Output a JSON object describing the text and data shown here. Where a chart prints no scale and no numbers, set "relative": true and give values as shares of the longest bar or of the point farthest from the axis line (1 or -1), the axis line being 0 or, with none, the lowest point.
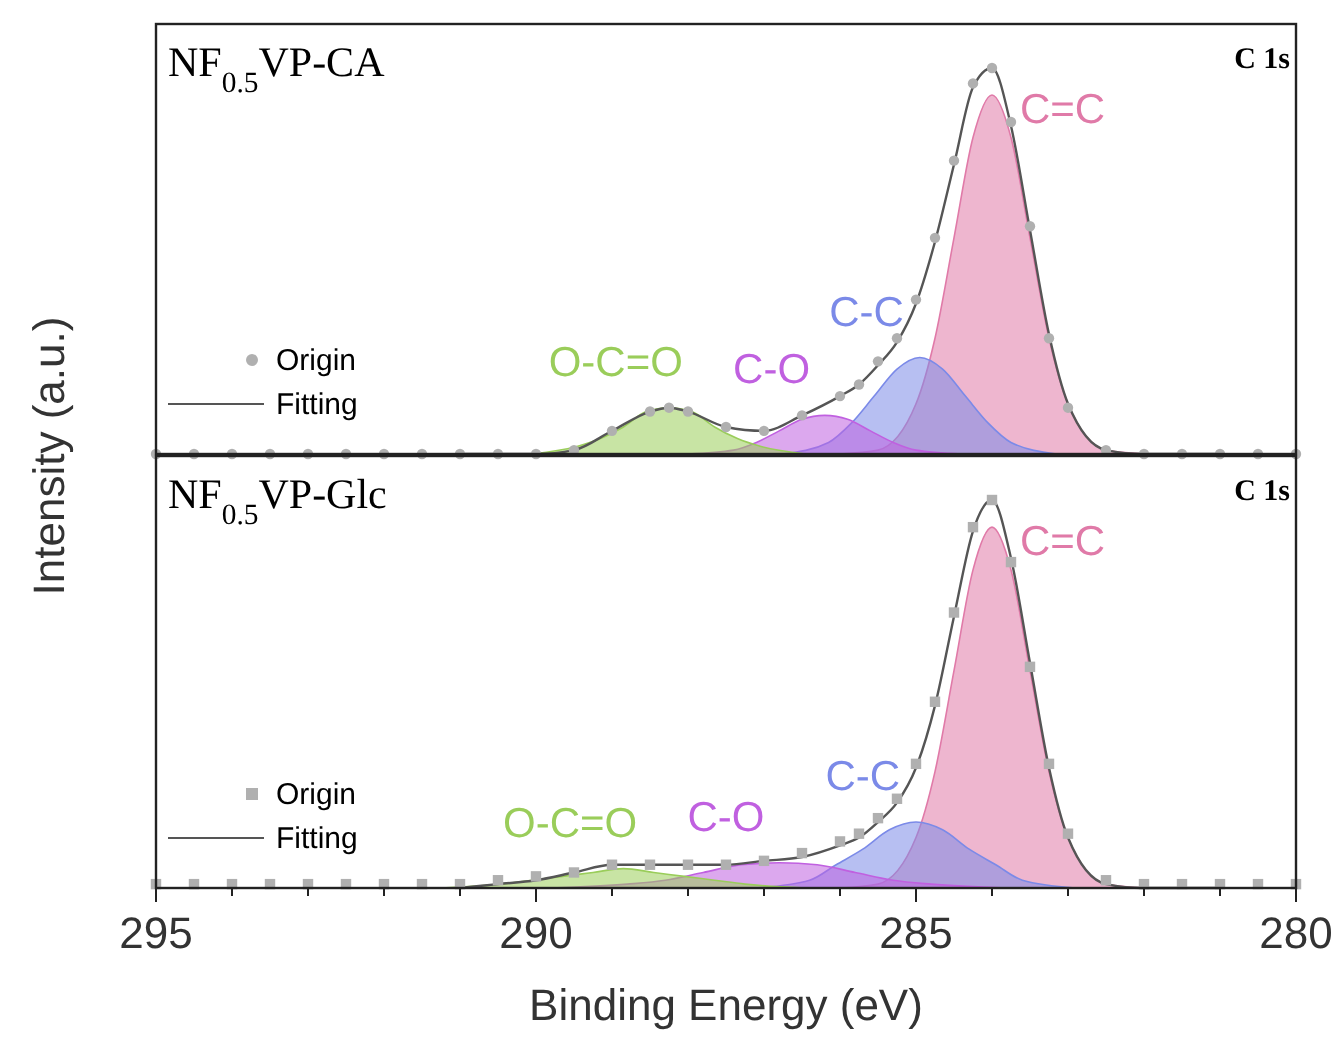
{
  "chart_data": [
    {
      "type": "area",
      "ylabel": "Intensity (a.u.)",
      "annotations": [
        "NF$_{0.5}$VP-CA",
        "C 1s"
      ],
      "xlim": [
        295,
        280
      ],
      "relative": true,
      "tick_labels": false,
      "legend": "bottom left",
      "series": [
        {
          "name": "C=C",
          "type": "area",
          "color": "#e07aa8",
          "x": [
            286,
            285.5,
            285,
            284.75,
            284.5,
            284.25,
            284,
            283.75,
            283.5,
            283.25,
            283,
            282.5,
            282
          ],
          "values": [
            0,
            0.01,
            0.13,
            0.3,
            0.56,
            0.82,
            0.93,
            0.82,
            0.56,
            0.3,
            0.13,
            0.01,
            0
          ]
        },
        {
          "name": "C-C",
          "type": "area",
          "color": "#7b8ae8",
          "x": [
            286.75,
            286.15,
            285.85,
            285.55,
            285.25,
            284.95,
            284.65,
            284.35,
            284.05,
            283.75,
            283.15
          ],
          "values": [
            0,
            0.03,
            0.08,
            0.15,
            0.22,
            0.25,
            0.22,
            0.15,
            0.08,
            0.03,
            0
          ]
        },
        {
          "name": "C-O",
          "type": "area",
          "color": "#c060e0",
          "x": [
            288,
            287.4,
            287.1,
            286.8,
            286.5,
            286.2,
            285.9,
            285.6,
            285.3,
            285,
            284.4
          ],
          "values": [
            0,
            0.01,
            0.03,
            0.06,
            0.09,
            0.1,
            0.09,
            0.06,
            0.03,
            0.01,
            0
          ]
        },
        {
          "name": "O-C=O",
          "type": "area",
          "color": "#9acd5a",
          "x": [
            290.05,
            289.45,
            289.15,
            288.85,
            288.55,
            288.25,
            287.95,
            287.65,
            287.35,
            287.05,
            286.45
          ],
          "values": [
            0,
            0.02,
            0.04,
            0.07,
            0.11,
            0.12,
            0.11,
            0.07,
            0.04,
            0.02,
            0
          ]
        },
        {
          "name": "Fitting",
          "type": "line",
          "color": "#555555",
          "x": [
            291,
            290,
            289.5,
            289,
            288.5,
            288.25,
            288,
            287.5,
            287,
            286.5,
            286,
            285.75,
            285.5,
            285.25,
            285,
            284.75,
            284.5,
            284.25,
            284,
            283.75,
            283.5,
            283.25,
            283,
            282.5,
            282,
            281
          ],
          "values": [
            0,
            0,
            0.01,
            0.06,
            0.11,
            0.12,
            0.11,
            0.07,
            0.06,
            0.1,
            0.15,
            0.18,
            0.23,
            0.29,
            0.39,
            0.55,
            0.75,
            0.95,
            1,
            0.85,
            0.58,
            0.31,
            0.13,
            0.01,
            0,
            0
          ]
        },
        {
          "name": "Origin",
          "type": "scatter",
          "marker": "circle",
          "color": "#b0b0b0",
          "x": [
            295,
            294.5,
            294,
            293.5,
            293,
            292.5,
            292,
            291.5,
            291,
            290.5,
            290,
            289.5,
            289,
            288.5,
            288.25,
            288,
            287.5,
            287,
            286.5,
            286,
            285.75,
            285.5,
            285.25,
            285,
            284.75,
            284.5,
            284.25,
            284,
            283.75,
            283.5,
            283.25,
            283,
            282.5,
            282,
            281.5,
            281,
            280.5,
            280
          ],
          "values": [
            0,
            0,
            0,
            0,
            0,
            0,
            0,
            0,
            0,
            0,
            0,
            0.01,
            0.06,
            0.11,
            0.12,
            0.11,
            0.07,
            0.06,
            0.1,
            0.15,
            0.18,
            0.24,
            0.3,
            0.4,
            0.56,
            0.76,
            0.96,
            1,
            0.86,
            0.59,
            0.3,
            0.12,
            0.01,
            0,
            0,
            0,
            0,
            0
          ]
        }
      ]
    },
    {
      "type": "area",
      "xlabel": "Binding Energy (eV)",
      "annotations": [
        "NF$_{0.5}$VP-Glc",
        "C 1s"
      ],
      "xlim": [
        295,
        280
      ],
      "xticks": [
        295,
        {
          "value": 294,
          "label": null
        },
        {
          "value": 293,
          "label": null
        },
        {
          "value": 292,
          "label": null
        },
        {
          "value": 291,
          "label": null
        },
        290,
        {
          "value": 289,
          "label": null
        },
        {
          "value": 288,
          "label": null
        },
        {
          "value": 287,
          "label": null
        },
        {
          "value": 286,
          "label": null
        },
        285,
        {
          "value": 284,
          "label": null
        },
        {
          "value": 283,
          "label": null
        },
        {
          "value": 282,
          "label": null
        },
        {
          "value": 281,
          "label": null
        },
        280
      ],
      "relative": true,
      "tick_labels": "x",
      "legend": "bottom left",
      "series": [
        {
          "name": "C=C",
          "type": "area",
          "color": "#e07aa8",
          "x": [
            286,
            285.5,
            285,
            284.75,
            284.5,
            284.25,
            284,
            283.75,
            283.5,
            283.25,
            283,
            282.5,
            282
          ],
          "values": [
            0,
            0.01,
            0.13,
            0.3,
            0.56,
            0.82,
            0.93,
            0.82,
            0.56,
            0.3,
            0.13,
            0.01,
            0
          ]
        },
        {
          "name": "C-C",
          "type": "area",
          "color": "#7b8ae8",
          "x": [
            287.1,
            286.4,
            286.05,
            285.7,
            285.35,
            285,
            284.65,
            284.3,
            283.95,
            283.6,
            282.9
          ],
          "values": [
            0,
            0.02,
            0.06,
            0.1,
            0.15,
            0.17,
            0.15,
            0.1,
            0.06,
            0.02,
            0
          ]
        },
        {
          "name": "C-O",
          "type": "area",
          "color": "#c060e0",
          "x": [
            289.8,
            288.8,
            288.3,
            287.8,
            287.3,
            286.8,
            286.3,
            285.8,
            285.3,
            284.8,
            283.8
          ],
          "values": [
            0,
            0.01,
            0.02,
            0.04,
            0.06,
            0.065,
            0.06,
            0.04,
            0.02,
            0.01,
            0
          ]
        },
        {
          "name": "O-C=O",
          "type": "area",
          "color": "#9acd5a",
          "x": [
            291.25,
            290.45,
            290.05,
            289.65,
            289.25,
            288.85,
            288.45,
            288.05,
            287.65,
            287.25,
            286.45
          ],
          "values": [
            0,
            0.01,
            0.02,
            0.03,
            0.04,
            0.05,
            0.04,
            0.03,
            0.02,
            0.01,
            0
          ]
        },
        {
          "name": "Fitting",
          "type": "line",
          "color": "#555555",
          "x": [
            291,
            290.5,
            290,
            289.5,
            289,
            288.5,
            288,
            287.5,
            287,
            286.5,
            286,
            285.75,
            285.5,
            285.25,
            285,
            284.75,
            284.5,
            284.25,
            284,
            283.75,
            283.5,
            283.25,
            283,
            282.5,
            282,
            281
          ],
          "values": [
            0,
            0.01,
            0.02,
            0.04,
            0.06,
            0.06,
            0.06,
            0.06,
            0.07,
            0.08,
            0.11,
            0.13,
            0.17,
            0.22,
            0.31,
            0.47,
            0.7,
            0.92,
            1,
            0.85,
            0.58,
            0.31,
            0.13,
            0.01,
            0,
            0
          ]
        },
        {
          "name": "Origin",
          "type": "scatter",
          "marker": "square",
          "color": "#b0b0b0",
          "x": [
            295,
            294.5,
            294,
            293.5,
            293,
            292.5,
            292,
            291.5,
            291,
            290.5,
            290,
            289.5,
            289,
            288.5,
            288,
            287.5,
            287,
            286.5,
            286,
            285.75,
            285.5,
            285.25,
            285,
            284.75,
            284.5,
            284.25,
            284,
            283.75,
            283.5,
            283.25,
            283,
            282.5,
            282,
            281.5,
            281,
            280.5,
            280
          ],
          "values": [
            0.01,
            0.01,
            0.01,
            0.01,
            0.01,
            0.01,
            0.01,
            0.01,
            0.01,
            0.02,
            0.03,
            0.04,
            0.06,
            0.06,
            0.06,
            0.06,
            0.07,
            0.09,
            0.12,
            0.14,
            0.18,
            0.23,
            0.32,
            0.48,
            0.71,
            0.93,
            1,
            0.84,
            0.57,
            0.32,
            0.14,
            0.02,
            0.01,
            0.01,
            0.01,
            0.01,
            0.01
          ]
        }
      ]
    }
  ]
}
